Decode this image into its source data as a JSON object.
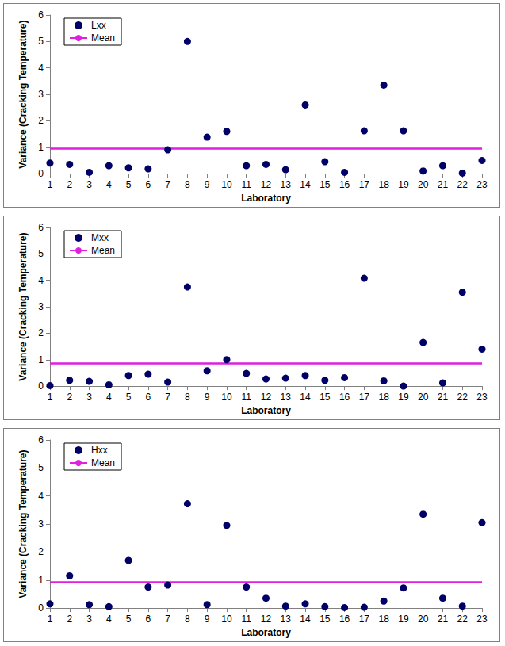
{
  "chart_data": [
    {
      "type": "scatter",
      "x_label": "Laboratory",
      "y_label": "Variance (Cracking Temperature)",
      "x": [
        1,
        2,
        3,
        4,
        5,
        6,
        7,
        8,
        9,
        10,
        11,
        12,
        13,
        14,
        15,
        16,
        17,
        18,
        19,
        20,
        21,
        22,
        23
      ],
      "xlim": [
        1,
        23
      ],
      "xticks": [
        1,
        2,
        3,
        4,
        5,
        6,
        7,
        8,
        9,
        10,
        11,
        12,
        13,
        14,
        15,
        16,
        17,
        18,
        19,
        20,
        21,
        22,
        23
      ],
      "ylim": [
        0,
        6
      ],
      "yticks": [
        0,
        1,
        2,
        3,
        4,
        5,
        6
      ],
      "grid": false,
      "legend": "upper left",
      "series": [
        {
          "name": "Lxx",
          "type": "scatter",
          "marker": "circle",
          "color": "#000066",
          "values": [
            0.4,
            0.35,
            0.05,
            0.3,
            0.22,
            0.18,
            0.9,
            5.0,
            1.38,
            1.6,
            0.3,
            0.35,
            0.15,
            2.6,
            0.45,
            0.05,
            1.62,
            3.35,
            1.62,
            0.1,
            0.3,
            0.02,
            0.5
          ]
        },
        {
          "name": "Mean",
          "type": "line",
          "line_style": "solid",
          "color": "#e020e0",
          "values": [
            0.95,
            0.95,
            0.95,
            0.95,
            0.95,
            0.95,
            0.95,
            0.95,
            0.95,
            0.95,
            0.95,
            0.95,
            0.95,
            0.95,
            0.95,
            0.95,
            0.95,
            0.95,
            0.95,
            0.95,
            0.95,
            0.95,
            0.95
          ]
        }
      ]
    },
    {
      "type": "scatter",
      "x_label": "Laboratory",
      "y_label": "Variance (Cracking Temperature)",
      "x": [
        1,
        2,
        3,
        4,
        5,
        6,
        7,
        8,
        9,
        10,
        11,
        12,
        13,
        14,
        15,
        16,
        17,
        18,
        19,
        20,
        21,
        22,
        23
      ],
      "xlim": [
        1,
        23
      ],
      "xticks": [
        1,
        2,
        3,
        4,
        5,
        6,
        7,
        8,
        9,
        10,
        11,
        12,
        13,
        14,
        15,
        16,
        17,
        18,
        19,
        20,
        21,
        22,
        23
      ],
      "ylim": [
        0,
        6
      ],
      "yticks": [
        0,
        1,
        2,
        3,
        4,
        5,
        6
      ],
      "grid": false,
      "legend": "upper left",
      "series": [
        {
          "name": "Mxx",
          "type": "scatter",
          "marker": "circle",
          "color": "#000066",
          "values": [
            0.02,
            0.22,
            0.18,
            0.05,
            0.4,
            0.45,
            0.15,
            3.75,
            0.58,
            1.0,
            0.48,
            0.27,
            0.3,
            0.4,
            0.22,
            0.32,
            4.08,
            0.2,
            0.0,
            1.65,
            0.12,
            3.55,
            1.4
          ]
        },
        {
          "name": "Mean",
          "type": "line",
          "line_style": "solid",
          "color": "#e020e0",
          "values": [
            0.86,
            0.86,
            0.86,
            0.86,
            0.86,
            0.86,
            0.86,
            0.86,
            0.86,
            0.86,
            0.86,
            0.86,
            0.86,
            0.86,
            0.86,
            0.86,
            0.86,
            0.86,
            0.86,
            0.86,
            0.86,
            0.86,
            0.86
          ]
        }
      ]
    },
    {
      "type": "scatter",
      "x_label": "Laboratory",
      "y_label": "Variance (Cracking Temperature)",
      "x": [
        1,
        2,
        3,
        4,
        5,
        6,
        7,
        8,
        9,
        10,
        11,
        12,
        13,
        14,
        15,
        16,
        17,
        18,
        19,
        20,
        21,
        22,
        23
      ],
      "xlim": [
        1,
        23
      ],
      "xticks": [
        1,
        2,
        3,
        4,
        5,
        6,
        7,
        8,
        9,
        10,
        11,
        12,
        13,
        14,
        15,
        16,
        17,
        18,
        19,
        20,
        21,
        22,
        23
      ],
      "ylim": [
        0,
        6
      ],
      "yticks": [
        0,
        1,
        2,
        3,
        4,
        5,
        6
      ],
      "grid": false,
      "legend": "upper left",
      "series": [
        {
          "name": "Hxx",
          "type": "scatter",
          "marker": "circle",
          "color": "#000066",
          "values": [
            0.15,
            1.15,
            0.12,
            0.05,
            1.7,
            0.75,
            0.82,
            3.72,
            0.12,
            2.95,
            0.75,
            0.35,
            0.07,
            0.15,
            0.05,
            0.02,
            0.03,
            0.25,
            0.72,
            3.35,
            0.35,
            0.07,
            3.05
          ]
        },
        {
          "name": "Mean",
          "type": "line",
          "line_style": "solid",
          "color": "#e020e0",
          "values": [
            0.92,
            0.92,
            0.92,
            0.92,
            0.92,
            0.92,
            0.92,
            0.92,
            0.92,
            0.92,
            0.92,
            0.92,
            0.92,
            0.92,
            0.92,
            0.92,
            0.92,
            0.92,
            0.92,
            0.92,
            0.92,
            0.92,
            0.92
          ]
        }
      ]
    }
  ]
}
